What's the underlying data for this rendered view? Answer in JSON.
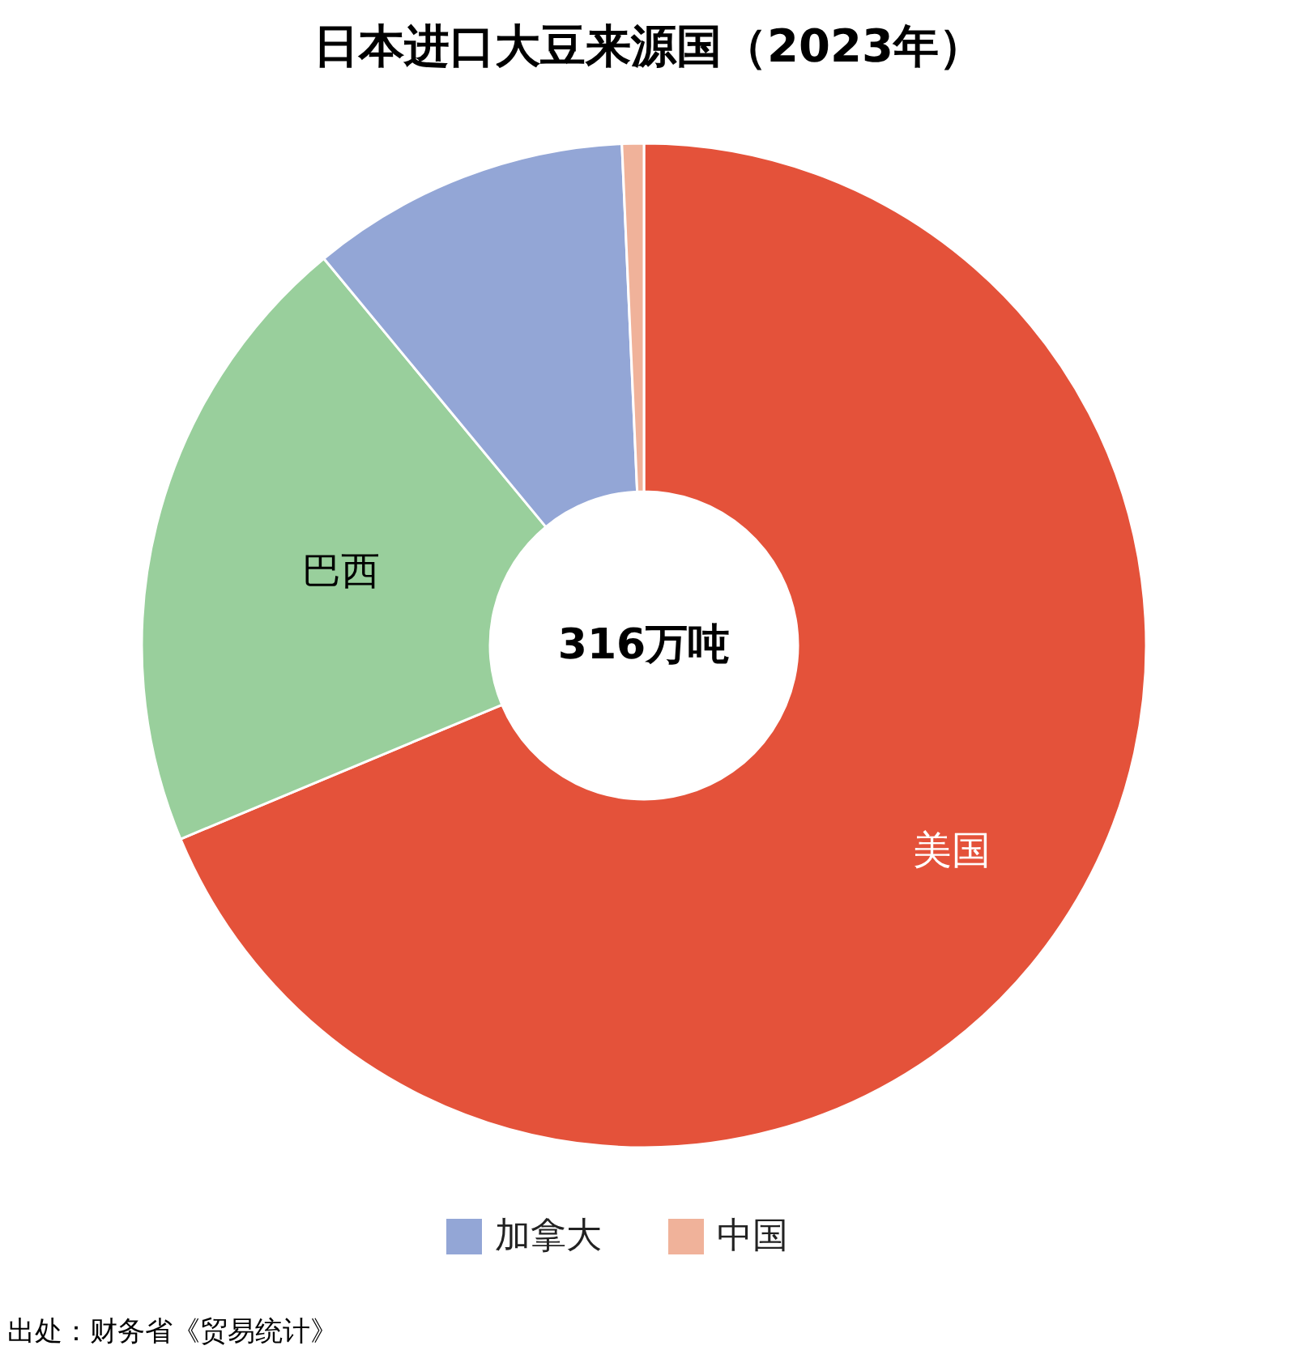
{
  "chart_data": {
    "type": "donut",
    "title": "日本进口大豆来源国（2023年）",
    "categories": [
      "美国",
      "巴西",
      "加拿大",
      "中国"
    ],
    "values": [
      68.7,
      20.3,
      10.3,
      0.7
    ],
    "colors": [
      "#e4523a",
      "#99cf9c",
      "#93a6d6",
      "#f0b29a"
    ],
    "legend": "bottom",
    "annotations": [
      "316万吨",
      "出处：财务省《贸易统计》"
    ]
  }
}
